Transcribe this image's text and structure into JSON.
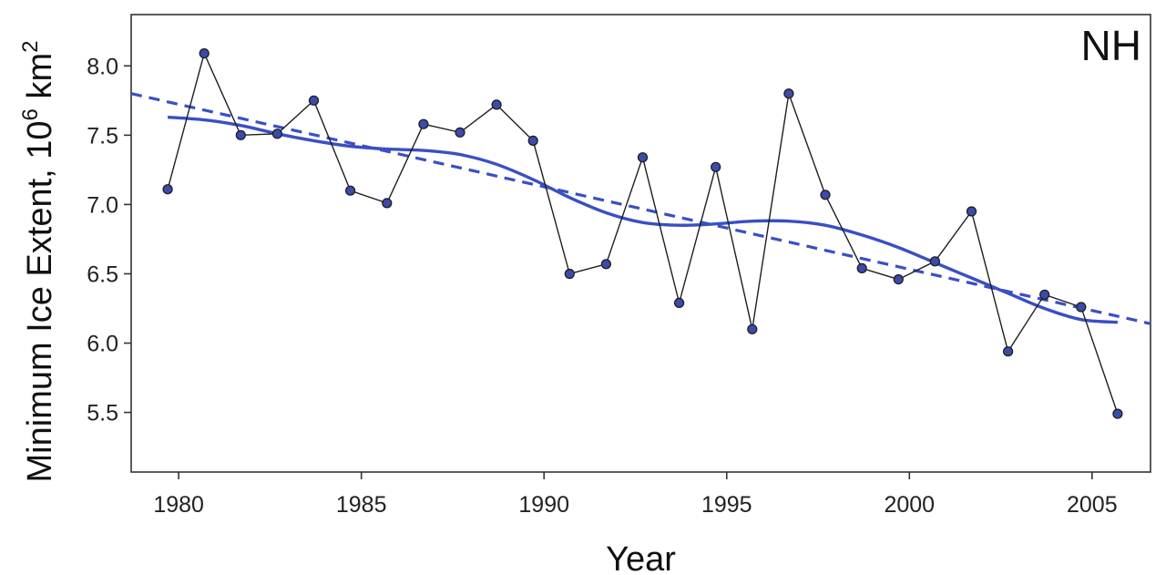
{
  "chart_data": {
    "type": "line",
    "corner_label": "NH",
    "xlabel": "Year",
    "ylabel_main": "Minimum Ice Extent, 10",
    "ylabel_sup": "6",
    "ylabel_unit": " km",
    "ylabel_unit_sup": "2",
    "xlim": [
      1978.7,
      2006.6
    ],
    "ylim": [
      5.07,
      8.37
    ],
    "x_ticks": [
      1980,
      1985,
      1990,
      1995,
      2000,
      2005
    ],
    "y_ticks": [
      5.5,
      6.0,
      6.5,
      7.0,
      7.5,
      8.0
    ],
    "y_tick_labels": [
      "5.5",
      "6.0",
      "6.5",
      "7.0",
      "7.5",
      "8.0"
    ],
    "grid": false,
    "series": [
      {
        "style": "observed",
        "color": "#1f1f1f",
        "marker_color": "#3b4ba8",
        "x": [
          1979.7,
          1980.7,
          1981.7,
          1982.7,
          1983.7,
          1984.7,
          1985.7,
          1986.7,
          1987.7,
          1988.7,
          1989.7,
          1990.7,
          1991.7,
          1992.7,
          1993.7,
          1994.7,
          1995.7,
          1996.7,
          1997.7,
          1998.7,
          1999.7,
          2000.7,
          2001.7,
          2002.7,
          2003.7,
          2004.7,
          2005.7
        ],
        "values": [
          7.11,
          8.09,
          7.5,
          7.51,
          7.75,
          7.1,
          7.01,
          7.58,
          7.52,
          7.72,
          7.46,
          6.5,
          6.57,
          7.34,
          6.29,
          7.27,
          6.1,
          7.8,
          7.07,
          6.54,
          6.46,
          6.59,
          6.95,
          5.94,
          6.35,
          6.26,
          5.49
        ]
      },
      {
        "style": "smoothed",
        "color": "#3a4fc4",
        "x": [
          1979.7,
          1980.7,
          1981.7,
          1982.7,
          1983.7,
          1984.7,
          1985.7,
          1986.7,
          1987.7,
          1988.7,
          1989.7,
          1990.7,
          1991.7,
          1992.7,
          1993.7,
          1994.7,
          1995.7,
          1996.7,
          1997.7,
          1998.7,
          1999.7,
          2000.7,
          2001.7,
          2002.7,
          2003.7,
          2004.7,
          2005.7
        ],
        "values": [
          7.63,
          7.61,
          7.57,
          7.51,
          7.46,
          7.42,
          7.4,
          7.39,
          7.36,
          7.29,
          7.18,
          7.05,
          6.94,
          6.87,
          6.85,
          6.86,
          6.88,
          6.88,
          6.85,
          6.78,
          6.69,
          6.58,
          6.47,
          6.36,
          6.25,
          6.17,
          6.15
        ]
      },
      {
        "style": "linear-trend",
        "color": "#3a4fc4",
        "x": [
          1978.7,
          2006.6
        ],
        "values": [
          7.8,
          6.14
        ]
      }
    ]
  }
}
